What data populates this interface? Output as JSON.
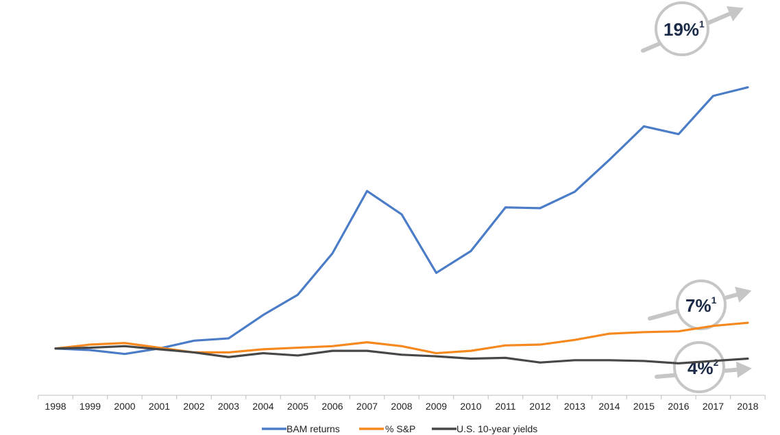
{
  "chart_data": {
    "type": "line",
    "title": "",
    "xlabel": "",
    "ylabel": "",
    "grid": false,
    "legend_position": "bottom",
    "ylim": [
      0.4,
      5.4
    ],
    "x": [
      "1998",
      "1999",
      "2000",
      "2001",
      "2002",
      "2003",
      "2004",
      "2005",
      "2006",
      "2007",
      "2008",
      "2009",
      "2010",
      "2011",
      "2012",
      "2013",
      "2014",
      "2015",
      "2016",
      "2017",
      "2018"
    ],
    "series": [
      {
        "name": "BAM returns",
        "color": "#4a7cc7",
        "values": [
          1.0,
          0.98,
          0.93,
          1.0,
          1.1,
          1.13,
          1.43,
          1.69,
          2.22,
          3.02,
          2.72,
          1.97,
          2.25,
          2.81,
          2.8,
          3.01,
          3.42,
          3.85,
          3.75,
          4.24,
          4.35
        ]
      },
      {
        "name": "% S&P",
        "color": "#f5891f",
        "values": [
          1.0,
          1.05,
          1.07,
          1.01,
          0.95,
          0.95,
          0.99,
          1.01,
          1.03,
          1.08,
          1.03,
          0.94,
          0.97,
          1.04,
          1.05,
          1.11,
          1.19,
          1.21,
          1.22,
          1.29,
          1.33
        ]
      },
      {
        "name": "U.S. 10-year yields",
        "color": "#474747",
        "values": [
          1.0,
          1.01,
          1.03,
          0.99,
          0.95,
          0.89,
          0.94,
          0.91,
          0.97,
          0.97,
          0.92,
          0.9,
          0.87,
          0.88,
          0.82,
          0.85,
          0.85,
          0.84,
          0.81,
          0.84,
          0.87
        ]
      }
    ],
    "annotations": [
      {
        "main": "19%",
        "sup": "1",
        "series": "BAM returns"
      },
      {
        "main": "7%",
        "sup": "1",
        "series": "% S&P"
      },
      {
        "main": "4%",
        "sup": "2",
        "series": "U.S. 10-year yields"
      }
    ]
  }
}
